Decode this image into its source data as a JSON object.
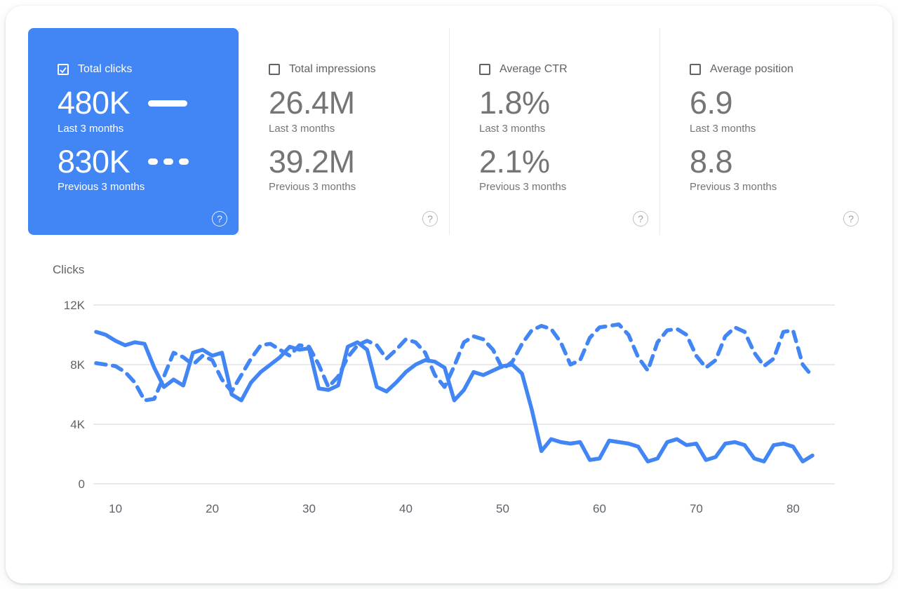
{
  "metrics": [
    {
      "id": "total-clicks",
      "label": "Total clicks",
      "checked": true,
      "current_value": "480K",
      "current_period": "Last 3 months",
      "previous_value": "830K",
      "previous_period": "Previous 3 months"
    },
    {
      "id": "total-impressions",
      "label": "Total impressions",
      "checked": false,
      "current_value": "26.4M",
      "current_period": "Last 3 months",
      "previous_value": "39.2M",
      "previous_period": "Previous 3 months"
    },
    {
      "id": "average-ctr",
      "label": "Average CTR",
      "checked": false,
      "current_value": "1.8%",
      "current_period": "Last 3 months",
      "previous_value": "2.1%",
      "previous_period": "Previous 3 months"
    },
    {
      "id": "average-position",
      "label": "Average position",
      "checked": false,
      "current_value": "6.9",
      "current_period": "Last 3 months",
      "previous_value": "8.8",
      "previous_period": "Previous 3 months"
    }
  ],
  "icons": {
    "help": "?",
    "checkbox_checked": "checkmark",
    "checkbox_unchecked": "empty-square"
  },
  "colors": {
    "selected_card_bg": "#4285f4",
    "line": "#4285f4",
    "grid": "#e8eaed",
    "axis_text": "#5f6368",
    "value_text": "#757575"
  },
  "chart_data": {
    "type": "line",
    "title": "Clicks",
    "ylabel": "Clicks",
    "xlabel": "",
    "y_unit": "K (thousands of clicks)",
    "xlim": [
      8,
      82
    ],
    "ylim": [
      0,
      12
    ],
    "x_ticks": [
      10,
      20,
      30,
      40,
      50,
      60,
      70,
      80
    ],
    "y_ticks": [
      {
        "v": 0,
        "label": "0"
      },
      {
        "v": 4,
        "label": "4K"
      },
      {
        "v": 8,
        "label": "8K"
      },
      {
        "v": 12,
        "label": "12K"
      }
    ],
    "grid": "horizontal",
    "legend_position": "in-metric-card",
    "x_start": 8,
    "x_step": 1,
    "series": [
      {
        "name": "Last 3 months",
        "style": "solid",
        "values": [
          10.2,
          10.0,
          9.6,
          9.3,
          9.5,
          9.4,
          7.8,
          6.5,
          7.0,
          6.6,
          8.8,
          9.0,
          8.6,
          8.8,
          6.0,
          5.6,
          6.8,
          7.5,
          8.0,
          8.5,
          9.2,
          9.0,
          9.1,
          6.4,
          6.3,
          6.6,
          9.2,
          9.5,
          9.0,
          6.5,
          6.2,
          6.8,
          7.5,
          8.0,
          8.3,
          8.2,
          7.8,
          5.6,
          6.3,
          7.5,
          7.3,
          7.6,
          7.9,
          8.0,
          7.4,
          5.0,
          2.2,
          3.0,
          2.8,
          2.7,
          2.8,
          1.6,
          1.7,
          2.9,
          2.8,
          2.7,
          2.5,
          1.5,
          1.7,
          2.8,
          3.0,
          2.6,
          2.7,
          1.6,
          1.8,
          2.7,
          2.8,
          2.6,
          1.7,
          1.5,
          2.6,
          2.7,
          2.5,
          1.5,
          1.9
        ]
      },
      {
        "name": "Previous 3 months",
        "style": "dashed",
        "values": [
          8.1,
          8.0,
          7.9,
          7.5,
          6.8,
          5.6,
          5.7,
          7.2,
          8.8,
          8.5,
          8.0,
          8.6,
          8.3,
          7.0,
          6.2,
          7.3,
          8.4,
          9.3,
          9.4,
          9.0,
          8.6,
          9.3,
          9.2,
          8.0,
          6.5,
          7.2,
          8.5,
          9.3,
          9.6,
          9.3,
          8.4,
          9.0,
          9.7,
          9.5,
          8.8,
          7.3,
          6.5,
          7.9,
          9.5,
          9.9,
          9.7,
          9.0,
          7.7,
          8.2,
          9.4,
          10.3,
          10.6,
          10.4,
          9.5,
          8.0,
          8.3,
          9.8,
          10.5,
          10.6,
          10.7,
          10.0,
          8.5,
          7.6,
          9.5,
          10.3,
          10.4,
          10.0,
          8.6,
          7.8,
          8.3,
          9.9,
          10.5,
          10.2,
          8.8,
          7.9,
          8.4,
          10.2,
          10.3,
          8.0,
          7.2
        ]
      }
    ]
  }
}
